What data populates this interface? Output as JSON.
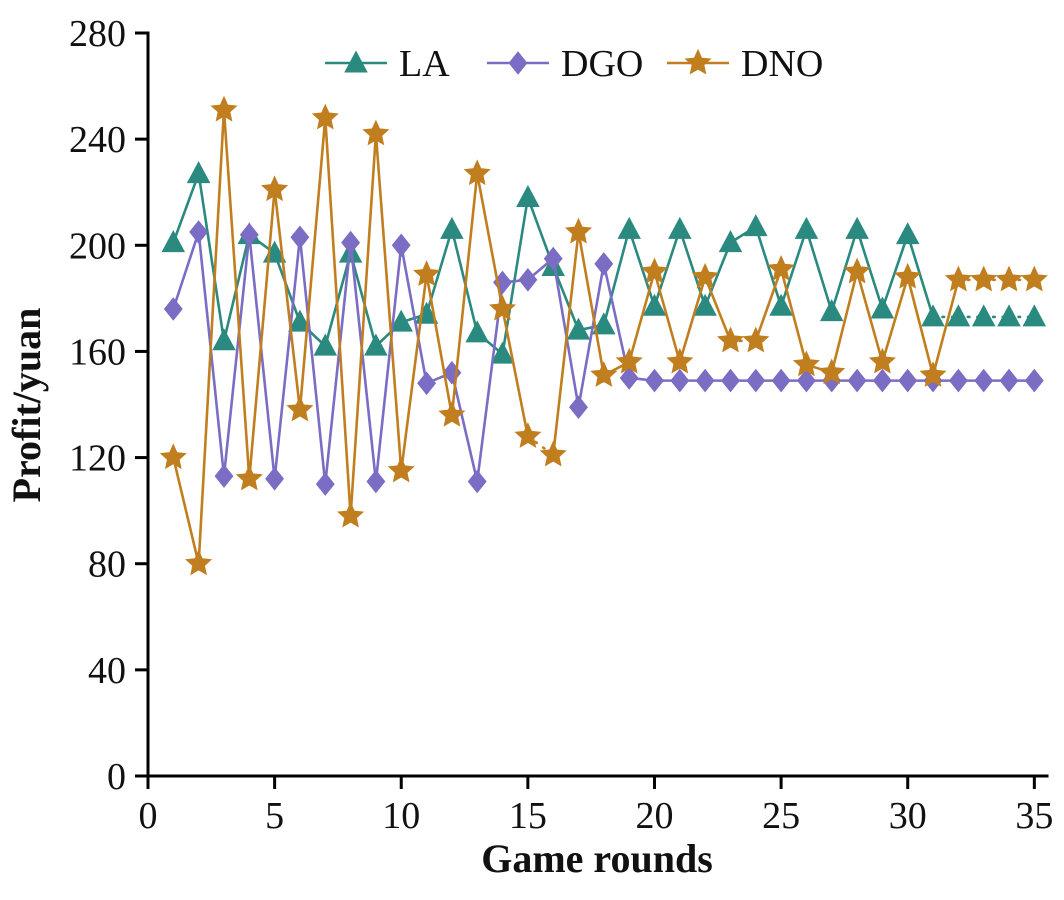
{
  "figure": {
    "background": "#ffffff",
    "frame_color": "#000000"
  },
  "chart_data": {
    "type": "line",
    "title": "",
    "xlabel": "Game rounds",
    "ylabel": "Profit/yuan",
    "grid": false,
    "legend_position": "top-center-inside",
    "xlim": [
      0,
      35.5
    ],
    "ylim": [
      0,
      280
    ],
    "xticks": [
      0,
      5,
      10,
      15,
      20,
      25,
      30,
      35
    ],
    "yticks": [
      0,
      40,
      80,
      120,
      160,
      200,
      240,
      280
    ],
    "x": [
      1,
      2,
      3,
      4,
      5,
      6,
      7,
      8,
      9,
      10,
      11,
      12,
      13,
      14,
      15,
      16,
      17,
      18,
      19,
      20,
      21,
      22,
      23,
      24,
      25,
      26,
      27,
      28,
      29,
      30,
      31,
      32,
      33,
      34,
      35
    ],
    "series": [
      {
        "name": "LA",
        "marker": "triangle",
        "color": "#2b8a80",
        "dash_from_x": 31,
        "dash_segments": [],
        "values": [
          201,
          227,
          164,
          204,
          197,
          171,
          162,
          197,
          162,
          171,
          174,
          206,
          167,
          159,
          218,
          192,
          168,
          170,
          206,
          177,
          206,
          177,
          201,
          207,
          177,
          206,
          175,
          206,
          176,
          204,
          173,
          173,
          173,
          173,
          173
        ]
      },
      {
        "name": "DGO",
        "marker": "diamond",
        "color": "#7b6cc4",
        "dash_from_x": 99,
        "dash_segments": [],
        "values": [
          176,
          205,
          113,
          204,
          112,
          203,
          110,
          201,
          111,
          200,
          148,
          152,
          111,
          186,
          187,
          195,
          139,
          193,
          150,
          149,
          149,
          149,
          149,
          149,
          149,
          149,
          149,
          149,
          149,
          149,
          149,
          149,
          149,
          149,
          149
        ]
      },
      {
        "name": "DNO",
        "marker": "star",
        "color": "#c07e1f",
        "dash_from_x": 32,
        "dash_segments": [
          [
            15,
            16
          ],
          [
            23,
            24
          ]
        ],
        "values": [
          120,
          80,
          251,
          112,
          221,
          138,
          248,
          98,
          242,
          115,
          189,
          136,
          227,
          176,
          128,
          121,
          205,
          151,
          156,
          190,
          156,
          188,
          164,
          164,
          191,
          155,
          152,
          190,
          156,
          188,
          151,
          187,
          187,
          187,
          187
        ]
      }
    ]
  }
}
